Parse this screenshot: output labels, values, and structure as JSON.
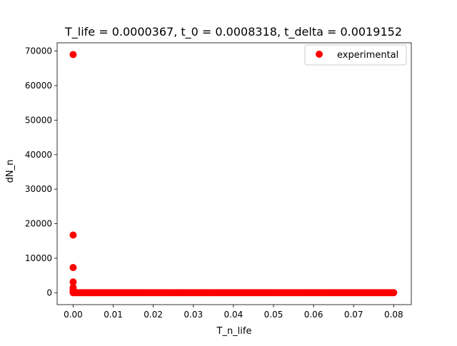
{
  "chart_data": {
    "type": "scatter",
    "title": "T_life = 0.0000367, t_0 = 0.0008318, t_delta = 0.0019152",
    "xlabel": "T_n_life",
    "ylabel": "dN_n",
    "xlim": [
      -0.004,
      0.0844
    ],
    "ylim": [
      -3450,
      72400
    ],
    "x_ticks": [
      0.0,
      0.01,
      0.02,
      0.03,
      0.04,
      0.05,
      0.06,
      0.07,
      0.08
    ],
    "x_tick_labels": [
      "0.00",
      "0.01",
      "0.02",
      "0.03",
      "0.04",
      "0.05",
      "0.06",
      "0.07",
      "0.08"
    ],
    "y_ticks": [
      0,
      10000,
      20000,
      30000,
      40000,
      50000,
      60000,
      70000
    ],
    "y_tick_labels": [
      "0",
      "10000",
      "20000",
      "30000",
      "40000",
      "50000",
      "60000",
      "70000"
    ],
    "grid": false,
    "legend": {
      "position": "top-right",
      "entries": [
        "experimental"
      ]
    },
    "series": [
      {
        "name": "experimental",
        "color": "#ff0000",
        "marker": "circle",
        "points": [
          {
            "x": 0.0,
            "y": 69000
          },
          {
            "x": 0.0,
            "y": 16700
          },
          {
            "x": 0.0,
            "y": 7300
          },
          {
            "x": 0.0,
            "y": 3100
          },
          {
            "x": 0.0,
            "y": 1500
          },
          {
            "x": 0.0,
            "y": 900
          },
          {
            "x": 0.0,
            "y": 500
          },
          {
            "x": 0.0,
            "y": 200
          }
        ],
        "baseline_run": {
          "x_start": 0.0,
          "x_end": 0.08,
          "y": 0,
          "count": 160
        }
      }
    ]
  }
}
